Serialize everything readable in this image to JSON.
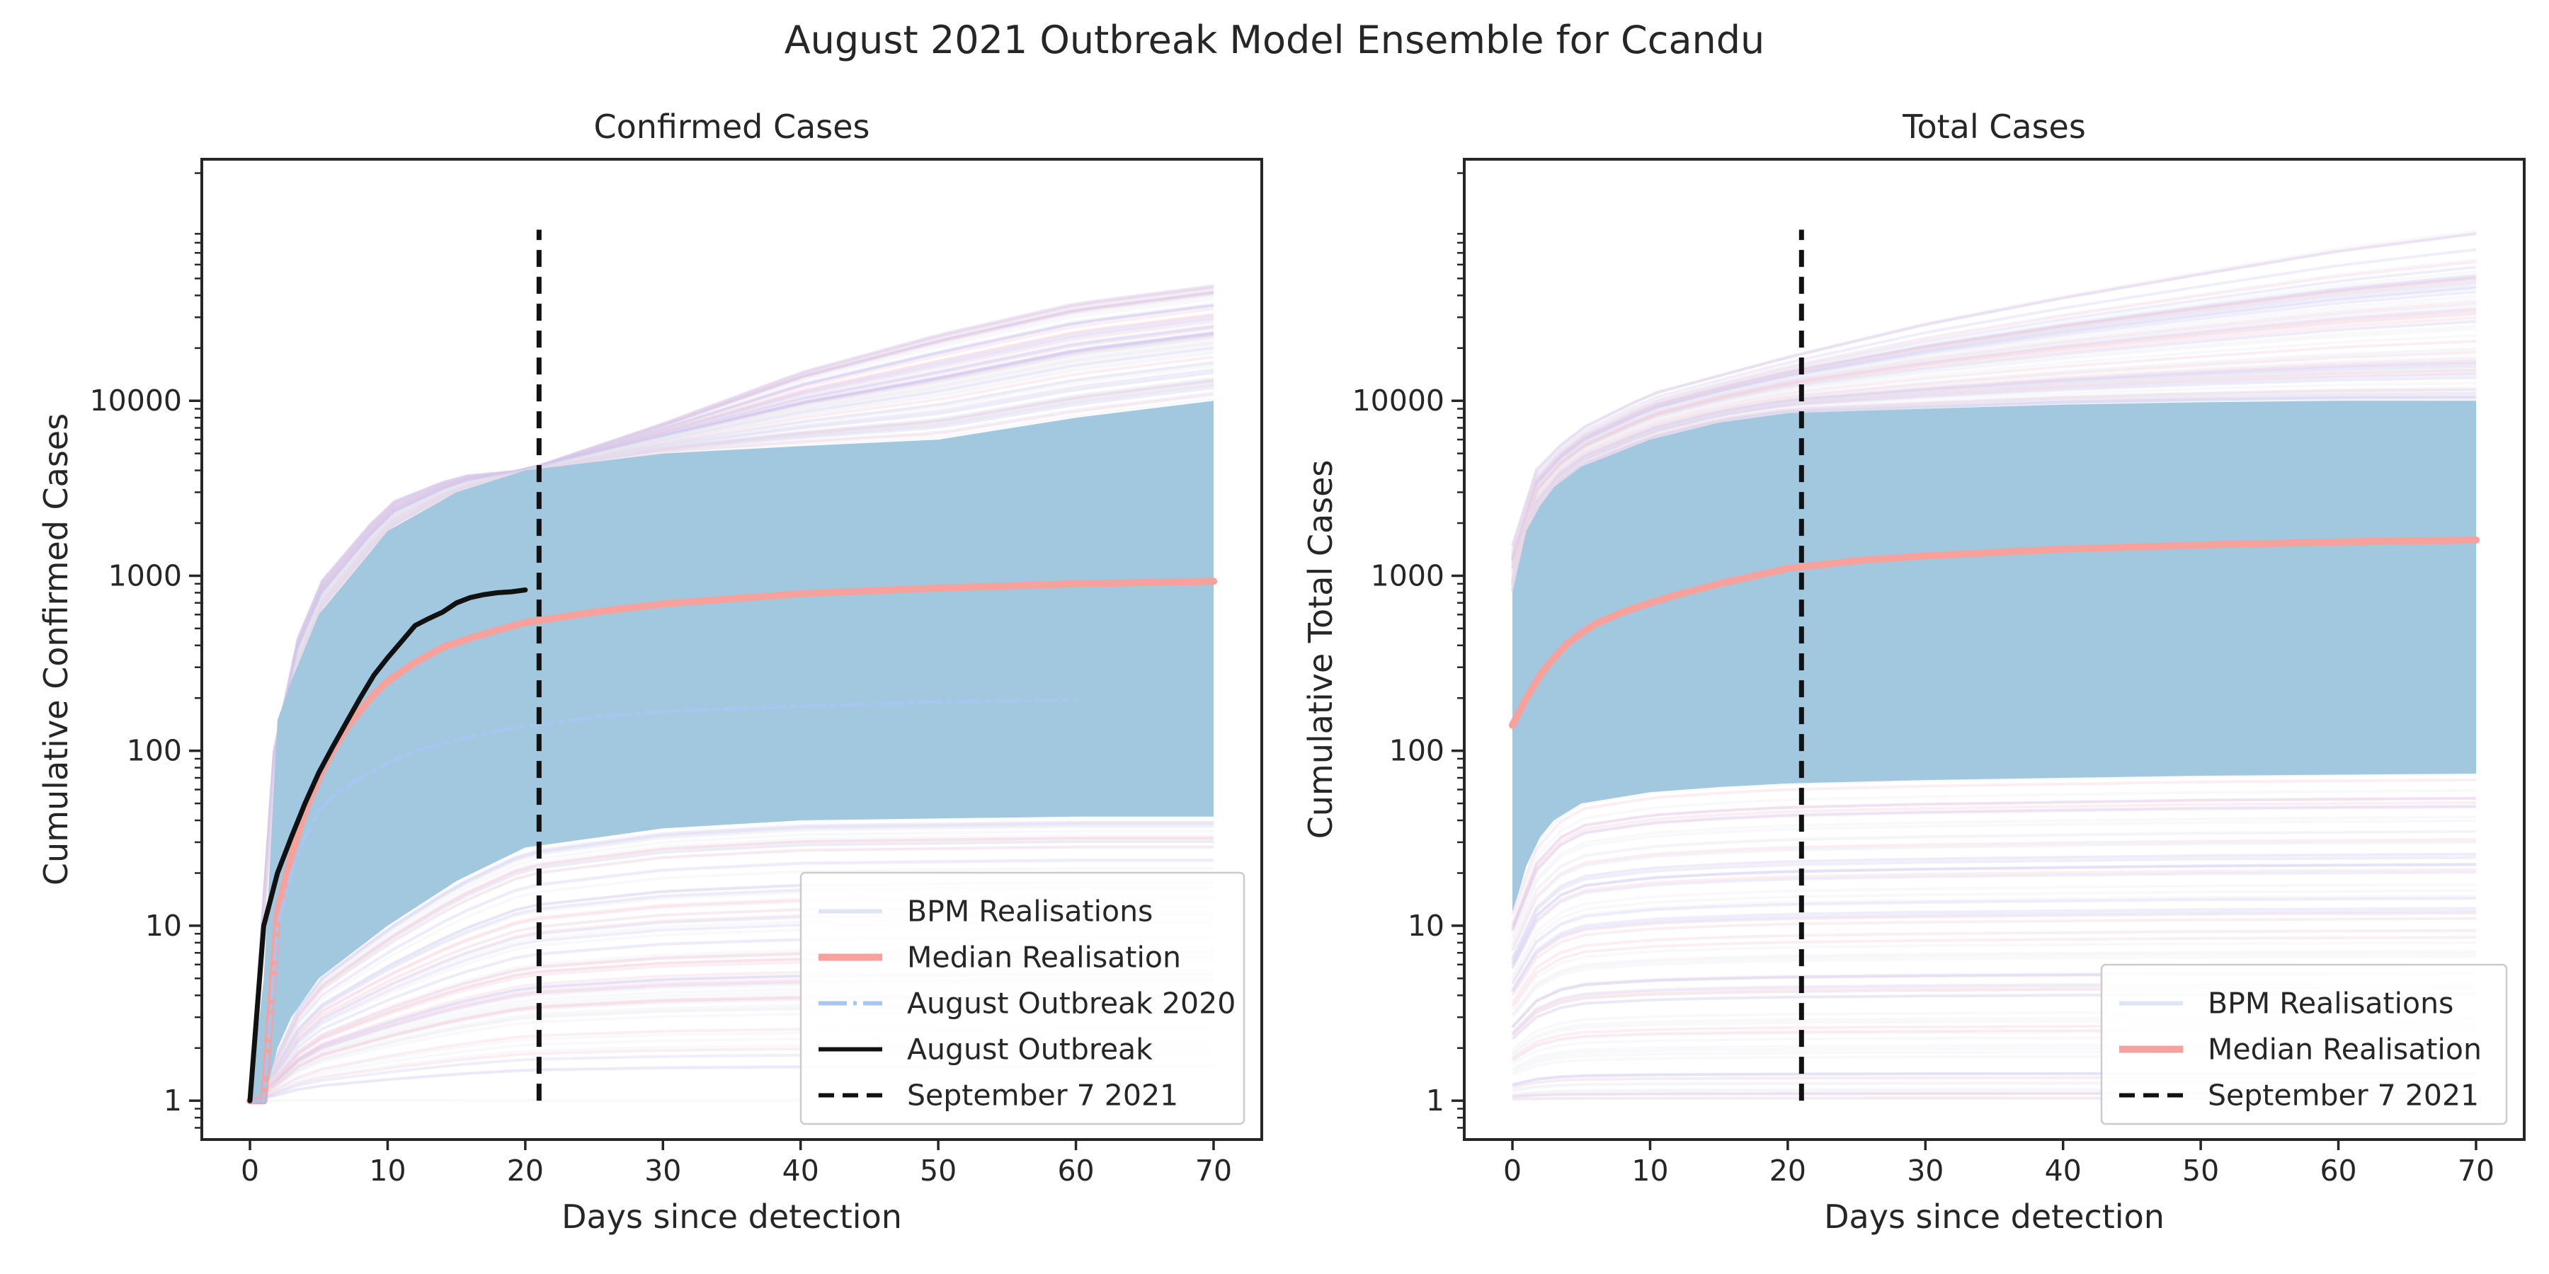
{
  "figure_title": "August 2021 Outbreak Model Ensemble for Ccandu",
  "colors": {
    "realisation_light": "#e8e8ef",
    "realisation_purple": "#c9c2f2",
    "realisation_pink": "#f2c6d6",
    "envelope_fill": "#a2c8df",
    "median": "#f6a19b",
    "august_2020": "#a7c7f2",
    "august_outbreak": "#111111",
    "september_line": "#111111",
    "axes": "#262626"
  },
  "chart_data": [
    {
      "type": "line",
      "title": "Confirmed Cases",
      "xlabel": "Days since detection",
      "ylabel": "Cumulative Confirmed Cases",
      "xscale": "linear",
      "yscale": "log",
      "xlim": [
        -3.5,
        73.5
      ],
      "ylim": [
        0.6,
        240000
      ],
      "xticks": [
        0,
        10,
        20,
        30,
        40,
        50,
        60,
        70
      ],
      "xtick_labels": [
        "0",
        "10",
        "20",
        "30",
        "40",
        "50",
        "60",
        "70"
      ],
      "yticks": [
        1,
        10,
        100,
        1000,
        10000
      ],
      "ytick_labels": [
        "1",
        "10",
        "100",
        "1000",
        "10000"
      ],
      "grid": false,
      "legend": {
        "placement": "lower-right",
        "entries": [
          {
            "label": "BPM Realisations",
            "style": "realisations"
          },
          {
            "label": "Median Realisation",
            "style": "median"
          },
          {
            "label": "August Outbreak 2020",
            "style": "dashdot"
          },
          {
            "label": "August Outbreak",
            "style": "observed"
          },
          {
            "label": "September 7 2021",
            "style": "vline"
          }
        ]
      },
      "envelope": {
        "x": [
          0,
          1,
          2,
          3,
          5,
          10,
          15,
          20,
          30,
          40,
          50,
          60,
          70
        ],
        "upper": [
          1,
          5,
          150,
          250,
          600,
          1800,
          3000,
          4000,
          5000,
          5500,
          6000,
          8000,
          10000
        ],
        "lower": [
          1,
          1,
          2,
          3,
          5,
          10,
          18,
          28,
          36,
          40,
          41,
          42,
          42
        ]
      },
      "outer_realisations": {
        "x": [
          0,
          1,
          2,
          5,
          10,
          15,
          20,
          30,
          40,
          50,
          60,
          70
        ],
        "upper": [
          1,
          10,
          220,
          900,
          2600,
          3700,
          4000,
          7500,
          15000,
          25000,
          38000,
          48000
        ],
        "lower": [
          1,
          1,
          1,
          1,
          1,
          1,
          1,
          1,
          1,
          1,
          1,
          1
        ]
      },
      "series": [
        {
          "name": "Median Realisation",
          "x": [
            0,
            1,
            2,
            3,
            4,
            5,
            6,
            7,
            8,
            9,
            10,
            12,
            14,
            16,
            18,
            20,
            25,
            30,
            40,
            50,
            60,
            70
          ],
          "values": [
            1,
            1,
            12,
            25,
            45,
            70,
            100,
            135,
            170,
            210,
            250,
            320,
            390,
            440,
            490,
            540,
            620,
            690,
            790,
            850,
            900,
            930
          ]
        },
        {
          "name": "August Outbreak 2020",
          "x": [
            0,
            1,
            2,
            3,
            4,
            5,
            6,
            8,
            10,
            12,
            14,
            16,
            18,
            20,
            25,
            30,
            40,
            50,
            60
          ],
          "values": [
            1,
            1,
            10,
            20,
            32,
            45,
            55,
            70,
            85,
            100,
            110,
            120,
            130,
            138,
            155,
            168,
            180,
            190,
            195
          ]
        },
        {
          "name": "August Outbreak",
          "x": [
            0,
            1,
            2,
            3,
            4,
            5,
            6,
            7,
            8,
            9,
            10,
            11,
            12,
            13,
            14,
            15,
            16,
            17,
            18,
            19,
            20
          ],
          "values": [
            1,
            10,
            20,
            32,
            50,
            75,
            105,
            145,
            200,
            270,
            340,
            420,
            520,
            570,
            620,
            700,
            750,
            780,
            800,
            810,
            830
          ]
        }
      ],
      "vline": {
        "name": "September 7 2021",
        "x": 21,
        "y_range": [
          1,
          95000
        ]
      }
    },
    {
      "type": "line",
      "title": "Total Cases",
      "xlabel": "Days since detection",
      "ylabel": "Cumulative Total Cases",
      "xscale": "linear",
      "yscale": "log",
      "xlim": [
        -3.5,
        73.5
      ],
      "ylim": [
        0.6,
        240000
      ],
      "xticks": [
        0,
        10,
        20,
        30,
        40,
        50,
        60,
        70
      ],
      "xtick_labels": [
        "0",
        "10",
        "20",
        "30",
        "40",
        "50",
        "60",
        "70"
      ],
      "yticks": [
        1,
        10,
        100,
        1000,
        10000
      ],
      "ytick_labels": [
        "1",
        "10",
        "100",
        "1000",
        "10000"
      ],
      "grid": false,
      "legend": {
        "placement": "lower-right",
        "entries": [
          {
            "label": "BPM Realisations",
            "style": "realisations"
          },
          {
            "label": "Median Realisation",
            "style": "median"
          },
          {
            "label": "September 7 2021",
            "style": "vline"
          }
        ]
      },
      "envelope": {
        "x": [
          0,
          0.5,
          1,
          2,
          3,
          5,
          10,
          15,
          20,
          30,
          40,
          50,
          60,
          70
        ],
        "upper": [
          800,
          1200,
          1800,
          2500,
          3200,
          4200,
          6000,
          7500,
          8500,
          9000,
          9500,
          9800,
          10000,
          10000
        ],
        "lower": [
          12,
          16,
          22,
          32,
          40,
          50,
          58,
          62,
          65,
          68,
          70,
          72,
          73,
          74
        ]
      },
      "outer_realisations": {
        "x": [
          0,
          1,
          2,
          5,
          10,
          20,
          30,
          40,
          50,
          60,
          70
        ],
        "upper": [
          1500,
          3000,
          4500,
          7000,
          11000,
          18000,
          28000,
          40000,
          55000,
          75000,
          95000
        ],
        "lower": [
          1,
          1,
          1,
          1,
          1,
          1,
          1,
          1,
          1,
          1,
          1
        ]
      },
      "series": [
        {
          "name": "Median Realisation",
          "x": [
            0,
            1,
            2,
            3,
            4,
            5,
            6,
            8,
            10,
            12,
            15,
            20,
            25,
            30,
            40,
            50,
            60,
            70
          ],
          "values": [
            140,
            200,
            270,
            340,
            410,
            470,
            530,
            620,
            700,
            780,
            900,
            1100,
            1220,
            1300,
            1420,
            1500,
            1560,
            1600
          ]
        }
      ],
      "vline": {
        "name": "September 7 2021",
        "x": 21,
        "y_range": [
          1,
          95000
        ]
      }
    }
  ]
}
